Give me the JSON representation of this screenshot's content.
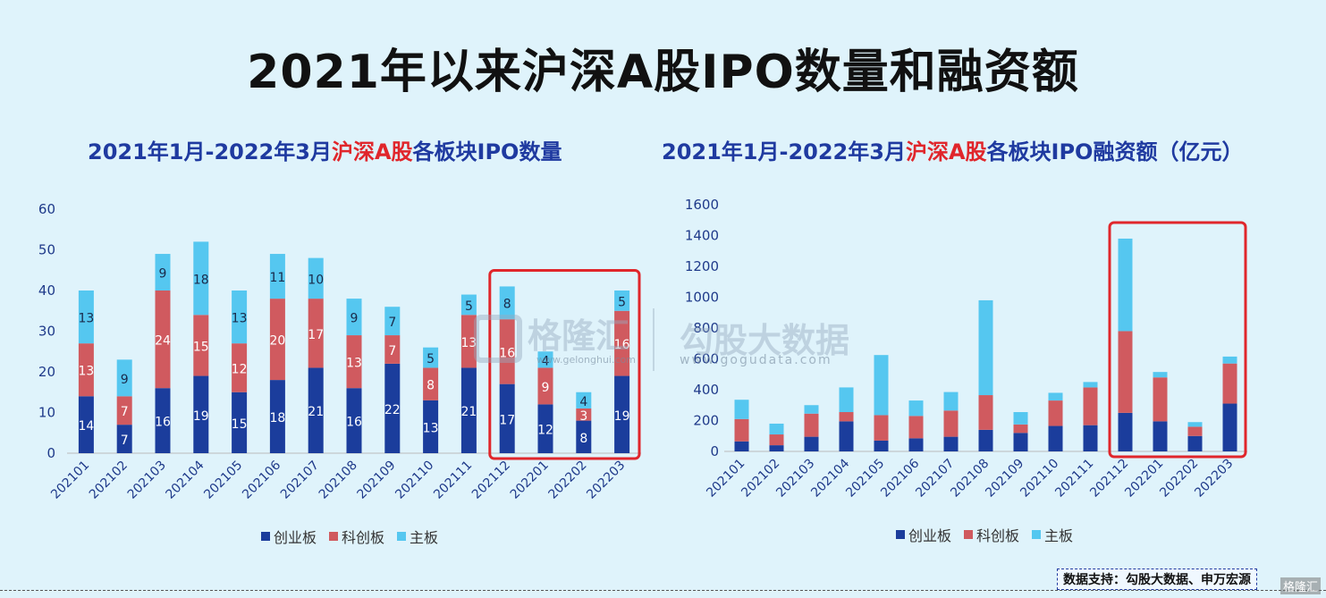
{
  "title": "2021年以来沪深A股IPO数量和融资额",
  "colors": {
    "cyb": "#1b3d9c",
    "kcb": "#d05a5f",
    "zb": "#55c7f0",
    "highlight": "#e0262b",
    "subtitle": "#1f3aa0"
  },
  "left_subtitle": {
    "prefix": "2021年1月-2022年3月",
    "highlight": "沪深A股",
    "suffix": "各板块IPO数量"
  },
  "right_subtitle": {
    "prefix": "2021年1月-2022年3月",
    "highlight": "沪深A股",
    "suffix": "各板块IPO融资额（亿元）"
  },
  "legend": {
    "cyb": "创业板",
    "kcb": "科创板",
    "zb": "主板"
  },
  "watermark": {
    "left_text": "格隆汇",
    "left_site": "www.gelonghui.com",
    "right_text": "勾股大数据",
    "right_site": "www.gogudata.com"
  },
  "footer": "数据支持：勾股大数据、申万宏源",
  "corner_mark": "格隆汇",
  "chart_data": [
    {
      "type": "bar",
      "stacked": true,
      "title": "2021年1月-2022年3月沪深A股各板块IPO数量",
      "categories": [
        "202101",
        "202102",
        "202103",
        "202104",
        "202105",
        "202106",
        "202107",
        "202108",
        "202109",
        "202110",
        "202111",
        "202112",
        "202201",
        "202202",
        "202203"
      ],
      "series": [
        {
          "name": "创业板",
          "values": [
            14,
            7,
            16,
            19,
            15,
            18,
            21,
            16,
            22,
            13,
            21,
            17,
            12,
            8,
            19
          ]
        },
        {
          "name": "科创板",
          "values": [
            13,
            7,
            24,
            15,
            12,
            20,
            17,
            13,
            7,
            8,
            13,
            16,
            9,
            3,
            16
          ]
        },
        {
          "name": "主板",
          "values": [
            13,
            9,
            9,
            18,
            13,
            11,
            10,
            9,
            7,
            5,
            5,
            8,
            4,
            4,
            5
          ]
        }
      ],
      "ylim": [
        0,
        60
      ],
      "yticks": [
        0,
        10,
        20,
        30,
        40,
        50,
        60
      ],
      "data_labels": true,
      "highlight_categories": [
        "202112",
        "202201",
        "202202",
        "202203"
      ],
      "legend_position": "bottom"
    },
    {
      "type": "bar",
      "stacked": true,
      "title": "2021年1月-2022年3月沪深A股各板块IPO融资额（亿元）",
      "categories": [
        "202101",
        "202102",
        "202103",
        "202104",
        "202105",
        "202106",
        "202107",
        "202108",
        "202109",
        "202110",
        "202111",
        "202112",
        "202201",
        "202202",
        "202203"
      ],
      "series": [
        {
          "name": "创业板",
          "values": [
            65,
            40,
            95,
            195,
            70,
            85,
            95,
            140,
            120,
            165,
            170,
            250,
            195,
            100,
            310
          ]
        },
        {
          "name": "科创板",
          "values": [
            145,
            70,
            150,
            60,
            165,
            145,
            170,
            225,
            55,
            165,
            245,
            530,
            285,
            60,
            260
          ]
        },
        {
          "name": "主板",
          "values": [
            125,
            70,
            55,
            160,
            390,
            100,
            120,
            615,
            80,
            50,
            35,
            600,
            35,
            30,
            45
          ]
        }
      ],
      "ylim": [
        0,
        1600
      ],
      "yticks": [
        0,
        200,
        400,
        600,
        800,
        1000,
        1200,
        1400,
        1600
      ],
      "data_labels": false,
      "highlight_categories": [
        "202112",
        "202201",
        "202202",
        "202203"
      ],
      "legend_position": "bottom"
    }
  ]
}
